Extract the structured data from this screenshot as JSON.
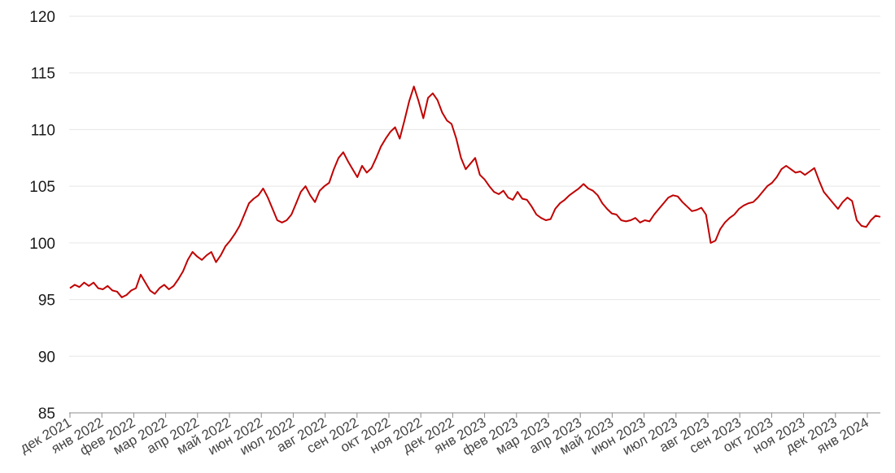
{
  "chart_data": {
    "type": "line",
    "title": "",
    "xlabel": "",
    "ylabel": "",
    "ylim": [
      85,
      120
    ],
    "yticks": [
      85,
      90,
      95,
      100,
      105,
      110,
      115,
      120
    ],
    "grid": true,
    "legend": "none",
    "color": "#c00000",
    "gridColor": "#e6e6e6",
    "xticks": [
      "дек 2021",
      "янв 2022",
      "фев 2022",
      "мар 2022",
      "апр 2022",
      "май 2022",
      "июн 2022",
      "июл 2022",
      "авг 2022",
      "сен 2022",
      "окт 2022",
      "ноя 2022",
      "дек 2022",
      "янв 2023",
      "фев 2023",
      "мар 2023",
      "апр 2023",
      "май 2023",
      "июн 2023",
      "июл 2023",
      "авг 2023",
      "сен 2023",
      "окт 2023",
      "ноя 2023",
      "дек 2023",
      "янв 2024"
    ],
    "series": [
      {
        "values": [
          96.0,
          96.3,
          96.1,
          96.5,
          96.2,
          96.5,
          96.0,
          95.9,
          96.2,
          95.8,
          95.7,
          95.2,
          95.4,
          95.8,
          96.0,
          97.2,
          96.5,
          95.8,
          95.5,
          96.0,
          96.3,
          95.9,
          96.2,
          96.8,
          97.5,
          98.5,
          99.2,
          98.8,
          98.5,
          98.9,
          99.2,
          98.3,
          98.9,
          99.7,
          100.2,
          100.8,
          101.5,
          102.5,
          103.5,
          103.9,
          104.2,
          104.8,
          104.0,
          103.0,
          102.0,
          101.8,
          102.0,
          102.5,
          103.5,
          104.5,
          105.0,
          104.2,
          103.6,
          104.6,
          105.0,
          105.3,
          106.5,
          107.5,
          108.0,
          107.2,
          106.5,
          105.8,
          106.8,
          106.2,
          106.6,
          107.5,
          108.5,
          109.2,
          109.8,
          110.2,
          109.2,
          110.8,
          112.5,
          113.8,
          112.5,
          111.0,
          112.8,
          113.2,
          112.6,
          111.5,
          110.8,
          110.5,
          109.2,
          107.5,
          106.5,
          107.0,
          107.5,
          106.0,
          105.6,
          105.0,
          104.5,
          104.3,
          104.6,
          104.0,
          103.8,
          104.5,
          103.9,
          103.8,
          103.2,
          102.5,
          102.2,
          102.0,
          102.1,
          103.0,
          103.5,
          103.8,
          104.2,
          104.5,
          104.8,
          105.2,
          104.8,
          104.6,
          104.2,
          103.5,
          103.0,
          102.6,
          102.5,
          102.0,
          101.9,
          102.0,
          102.2,
          101.8,
          102.0,
          101.9,
          102.5,
          103.0,
          103.5,
          104.0,
          104.2,
          104.1,
          103.6,
          103.2,
          102.8,
          102.9,
          103.1,
          102.5,
          100.0,
          100.2,
          101.2,
          101.8,
          102.2,
          102.5,
          103.0,
          103.3,
          103.5,
          103.6,
          104.0,
          104.5,
          105.0,
          105.3,
          105.8,
          106.5,
          106.8,
          106.5,
          106.2,
          106.3,
          106.0,
          106.3,
          106.6,
          105.5,
          104.5,
          104.0,
          103.5,
          103.0,
          103.6,
          104.0,
          103.7,
          102.0,
          101.5,
          101.4,
          102.0,
          102.4,
          102.3
        ]
      }
    ]
  }
}
